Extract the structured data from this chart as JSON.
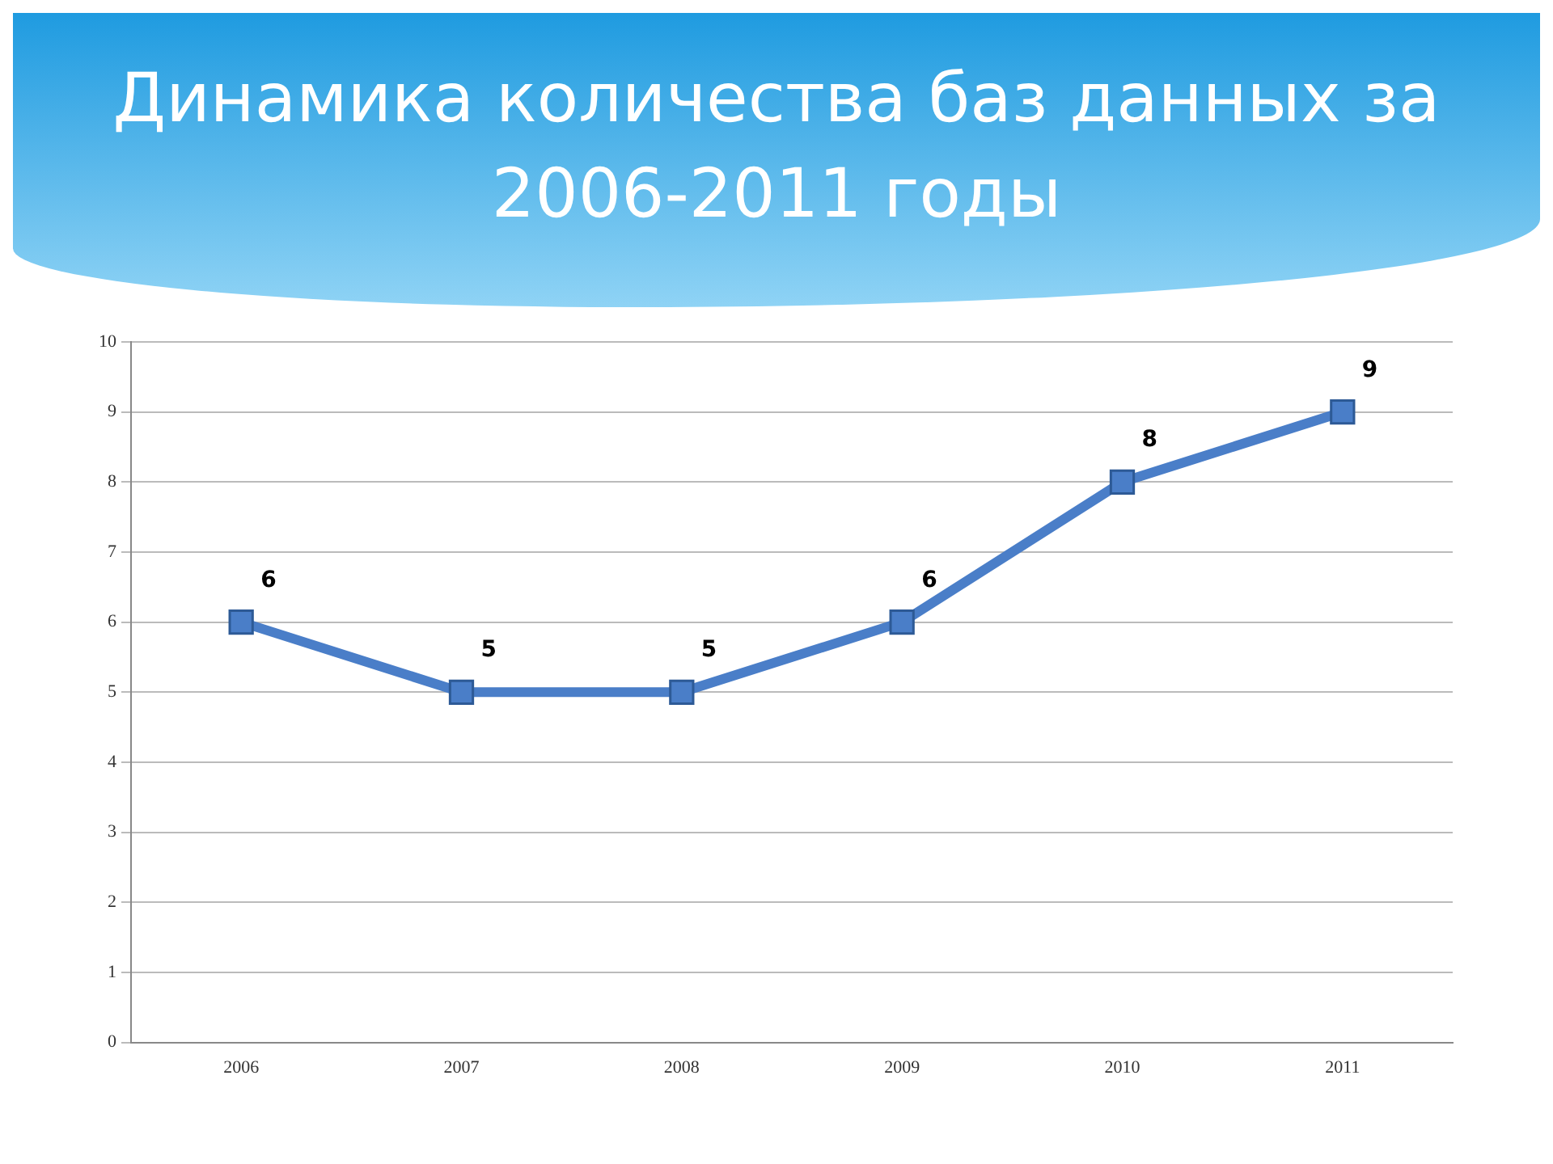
{
  "chart_data": {
    "type": "line",
    "title": "Динамика количества баз данных за 2006-2011 годы",
    "categories": [
      "2006",
      "2007",
      "2008",
      "2009",
      "2010",
      "2011"
    ],
    "series": [
      {
        "color": "#4a7ec8",
        "values": [
          6,
          5,
          5,
          6,
          8,
          9
        ]
      }
    ],
    "ylim": [
      0,
      10
    ],
    "yticks": [
      0,
      1,
      2,
      3,
      4,
      5,
      6,
      7,
      8,
      9,
      10
    ],
    "grid": "y",
    "legend": false,
    "marker": "square",
    "line_style": "solid",
    "data_labels": true
  }
}
